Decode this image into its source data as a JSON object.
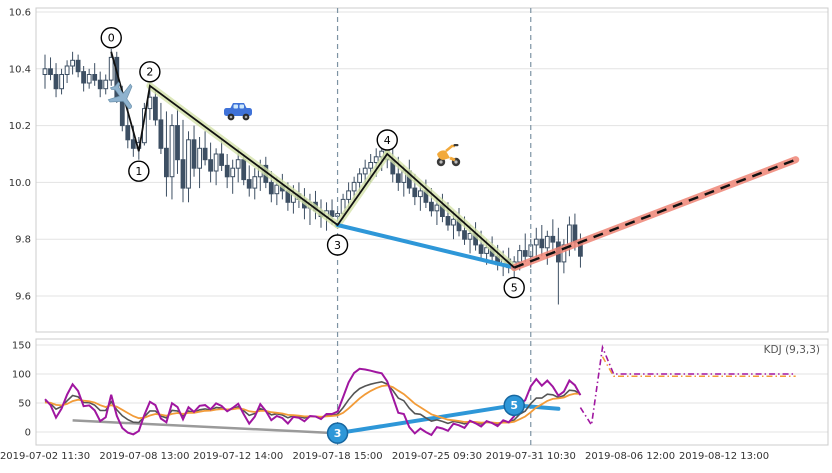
{
  "chart_data": {
    "type": "candlestick",
    "title": "",
    "panels": [
      "price",
      "kdj"
    ],
    "indicator_label": "KDJ (9,3,3)",
    "x_tick_labels": [
      "2019-07-02 11:30",
      "2019-07-08 13:00",
      "2019-07-12 14:00",
      "2019-07-18 15:00",
      "2019-07-25 09:30",
      "2019-07-31 10:30",
      "2019-08-06 12:00",
      "2019-08-12 13:00"
    ],
    "x_tick_indices": [
      0,
      18,
      35,
      53,
      71,
      88,
      106,
      123
    ],
    "y_ticks_price": [
      "10.6",
      "10.4",
      "10.2",
      "10.0",
      "9.8",
      "9.6"
    ],
    "y_tick_values_price": [
      10.6,
      10.4,
      10.2,
      10.0,
      9.8,
      9.6
    ],
    "y_ticks_kdj": [
      "150",
      "100",
      "50",
      "0"
    ],
    "y_tick_values_kdj": [
      150,
      100,
      50,
      0
    ],
    "colors": {
      "candle": "#3d4f63",
      "wave_line": "#111111",
      "wave_glow": "#d5e3ab",
      "support_line": "#2e97d8",
      "forecast_line": "#111111",
      "forecast_glow": "#ef8576",
      "marker_line": "#7d93a3",
      "kdj_k": "#555555",
      "kdj_d": "#f29b38",
      "kdj_j": "#a016a0",
      "overlay_gray": "#9a9a9a",
      "overlay_blue": "#2e97d8",
      "grid": "#e3e3e3",
      "panel_border": "#cccccc",
      "axis_text": "#333333"
    },
    "bars": [
      [
        10.38,
        10.45,
        10.33,
        10.4
      ],
      [
        10.4,
        10.44,
        10.36,
        10.38
      ],
      [
        10.38,
        10.42,
        10.3,
        10.33
      ],
      [
        10.33,
        10.4,
        10.31,
        10.38
      ],
      [
        10.38,
        10.43,
        10.35,
        10.41
      ],
      [
        10.41,
        10.46,
        10.38,
        10.43
      ],
      [
        10.43,
        10.45,
        10.37,
        10.39
      ],
      [
        10.39,
        10.41,
        10.32,
        10.35
      ],
      [
        10.35,
        10.4,
        10.33,
        10.38
      ],
      [
        10.38,
        10.42,
        10.34,
        10.36
      ],
      [
        10.36,
        10.39,
        10.3,
        10.33
      ],
      [
        10.33,
        10.38,
        10.31,
        10.36
      ],
      [
        10.36,
        10.47,
        10.34,
        10.44
      ],
      [
        10.44,
        10.46,
        10.28,
        10.3
      ],
      [
        10.3,
        10.34,
        10.18,
        10.2
      ],
      [
        10.2,
        10.26,
        10.12,
        10.15
      ],
      [
        10.15,
        10.2,
        10.09,
        10.12
      ],
      [
        10.12,
        10.16,
        10.08,
        10.14
      ],
      [
        10.14,
        10.28,
        10.13,
        10.26
      ],
      [
        10.26,
        10.35,
        10.22,
        10.3
      ],
      [
        10.3,
        10.33,
        10.2,
        10.22
      ],
      [
        10.22,
        10.28,
        10.1,
        10.12
      ],
      [
        10.12,
        10.25,
        9.95,
        10.02
      ],
      [
        10.02,
        10.24,
        9.94,
        10.2
      ],
      [
        10.2,
        10.26,
        10.03,
        10.08
      ],
      [
        10.08,
        10.22,
        9.93,
        9.98
      ],
      [
        9.98,
        10.18,
        9.93,
        10.15
      ],
      [
        10.15,
        10.2,
        10.02,
        10.05
      ],
      [
        10.05,
        10.16,
        9.98,
        10.12
      ],
      [
        10.12,
        10.18,
        10.06,
        10.08
      ],
      [
        10.08,
        10.14,
        10.0,
        10.04
      ],
      [
        10.04,
        10.12,
        9.99,
        10.1
      ],
      [
        10.1,
        10.15,
        10.04,
        10.06
      ],
      [
        10.06,
        10.1,
        9.98,
        10.02
      ],
      [
        10.02,
        10.08,
        9.96,
        10.05
      ],
      [
        10.05,
        10.12,
        10.0,
        10.08
      ],
      [
        10.08,
        10.1,
        9.99,
        10.01
      ],
      [
        10.01,
        10.06,
        9.95,
        9.98
      ],
      [
        9.98,
        10.05,
        9.94,
        10.02
      ],
      [
        10.02,
        10.08,
        9.97,
        10.06
      ],
      [
        10.06,
        10.09,
        9.98,
        10.0
      ],
      [
        10.0,
        10.04,
        9.93,
        9.96
      ],
      [
        9.96,
        10.02,
        9.92,
        9.99
      ],
      [
        9.99,
        10.03,
        9.94,
        9.97
      ],
      [
        9.97,
        10.0,
        9.9,
        9.93
      ],
      [
        9.93,
        9.99,
        9.89,
        9.96
      ],
      [
        9.96,
        10.0,
        9.91,
        9.94
      ],
      [
        9.94,
        9.98,
        9.87,
        9.91
      ],
      [
        9.91,
        9.96,
        9.85,
        9.93
      ],
      [
        9.93,
        9.97,
        9.87,
        9.9
      ],
      [
        9.9,
        9.94,
        9.84,
        9.88
      ],
      [
        9.88,
        9.93,
        9.83,
        9.9
      ],
      [
        9.9,
        9.94,
        9.85,
        9.88
      ],
      [
        9.88,
        9.91,
        9.84,
        9.89
      ],
      [
        9.89,
        9.96,
        9.87,
        9.94
      ],
      [
        9.94,
        10.0,
        9.91,
        9.97
      ],
      [
        9.97,
        10.02,
        9.93,
        10.0
      ],
      [
        10.0,
        10.05,
        9.96,
        10.03
      ],
      [
        10.03,
        10.08,
        9.99,
        10.05
      ],
      [
        10.05,
        10.1,
        10.0,
        10.07
      ],
      [
        10.07,
        10.12,
        10.02,
        10.09
      ],
      [
        10.09,
        10.14,
        10.04,
        10.11
      ],
      [
        10.11,
        10.15,
        10.05,
        10.08
      ],
      [
        10.08,
        10.12,
        10.0,
        10.03
      ],
      [
        10.03,
        10.09,
        9.97,
        10.0
      ],
      [
        10.0,
        10.06,
        9.95,
        10.04
      ],
      [
        10.04,
        10.08,
        9.96,
        9.98
      ],
      [
        9.98,
        10.03,
        9.92,
        9.95
      ],
      [
        9.95,
        10.0,
        9.9,
        9.97
      ],
      [
        9.97,
        10.01,
        9.91,
        9.93
      ],
      [
        9.93,
        9.98,
        9.88,
        9.9
      ],
      [
        9.9,
        9.95,
        9.85,
        9.92
      ],
      [
        9.92,
        9.96,
        9.86,
        9.88
      ],
      [
        9.88,
        9.93,
        9.83,
        9.85
      ],
      [
        9.85,
        9.9,
        9.8,
        9.87
      ],
      [
        9.87,
        9.91,
        9.81,
        9.83
      ],
      [
        9.83,
        9.88,
        9.78,
        9.8
      ],
      [
        9.8,
        9.85,
        9.75,
        9.82
      ],
      [
        9.82,
        9.86,
        9.76,
        9.78
      ],
      [
        9.78,
        9.83,
        9.73,
        9.75
      ],
      [
        9.75,
        9.8,
        9.71,
        9.77
      ],
      [
        9.77,
        9.81,
        9.72,
        9.74
      ],
      [
        9.74,
        9.78,
        9.69,
        9.71
      ],
      [
        9.71,
        9.76,
        9.67,
        9.73
      ],
      [
        9.73,
        9.77,
        9.68,
        9.7
      ],
      [
        9.7,
        9.74,
        9.66,
        9.72
      ],
      [
        9.72,
        9.78,
        9.69,
        9.76
      ],
      [
        9.76,
        9.82,
        9.72,
        9.74
      ],
      [
        9.74,
        9.8,
        9.7,
        9.78
      ],
      [
        9.78,
        9.84,
        9.73,
        9.8
      ],
      [
        9.8,
        9.85,
        9.74,
        9.77
      ],
      [
        9.77,
        9.83,
        9.71,
        9.81
      ],
      [
        9.81,
        9.87,
        9.75,
        9.79
      ],
      [
        9.79,
        9.84,
        9.57,
        9.72
      ],
      [
        9.72,
        9.8,
        9.68,
        9.78
      ],
      [
        9.78,
        9.88,
        9.74,
        9.85
      ],
      [
        9.85,
        9.89,
        9.76,
        9.79
      ],
      [
        9.79,
        9.82,
        9.7,
        9.74
      ]
    ],
    "wave_points": [
      {
        "label": "0",
        "index": 12,
        "price": 10.46,
        "label_pos": "above"
      },
      {
        "label": "1",
        "index": 17,
        "price": 10.11,
        "label_pos": "below"
      },
      {
        "label": "2",
        "index": 19,
        "price": 10.34,
        "label_pos": "above"
      },
      {
        "label": "3",
        "index": 53,
        "price": 9.85,
        "label_pos": "below"
      },
      {
        "label": "4",
        "index": 62,
        "price": 10.1,
        "label_pos": "above"
      },
      {
        "label": "5",
        "index": 85,
        "price": 9.7,
        "label_pos": "below"
      }
    ],
    "wave_glow_segments": [
      [
        2,
        3
      ],
      [
        3,
        4
      ],
      [
        4,
        5
      ]
    ],
    "support_line": {
      "from": {
        "index": 53,
        "price": 9.85
      },
      "to": {
        "index": 85,
        "price": 9.7
      }
    },
    "forecast_line": {
      "from": {
        "index": 85,
        "price": 9.7
      },
      "to": {
        "index": 136,
        "price": 10.08
      }
    },
    "event_markers": [
      53,
      88
    ],
    "icons": [
      {
        "name": "airplane-icon",
        "index": 14,
        "price": 10.3
      },
      {
        "name": "car-icon",
        "index": 35,
        "price": 10.25
      },
      {
        "name": "scooter-icon",
        "index": 73,
        "price": 10.1
      }
    ],
    "kdj_params": {
      "n": 9,
      "m1": 3,
      "m2": 3
    },
    "kdj_overlay": {
      "gray_line": [
        [
          5,
          20
        ],
        [
          53,
          -2
        ]
      ],
      "blue_line": [
        [
          53,
          -2
        ],
        [
          85,
          46
        ],
        [
          93,
          40
        ]
      ],
      "circles": [
        {
          "label": "3",
          "index": 53,
          "value": -2
        },
        {
          "label": "5",
          "index": 85,
          "value": 46
        }
      ]
    },
    "kdj_forecast": {
      "spike": [
        [
          97,
          42
        ],
        [
          99,
          12
        ],
        [
          101,
          146
        ],
        [
          103,
          100
        ]
      ],
      "flat_value": 100,
      "flat_end_index": 136,
      "orange": [
        [
          101,
          130
        ],
        [
          103,
          96
        ],
        [
          136,
          96
        ]
      ]
    }
  }
}
